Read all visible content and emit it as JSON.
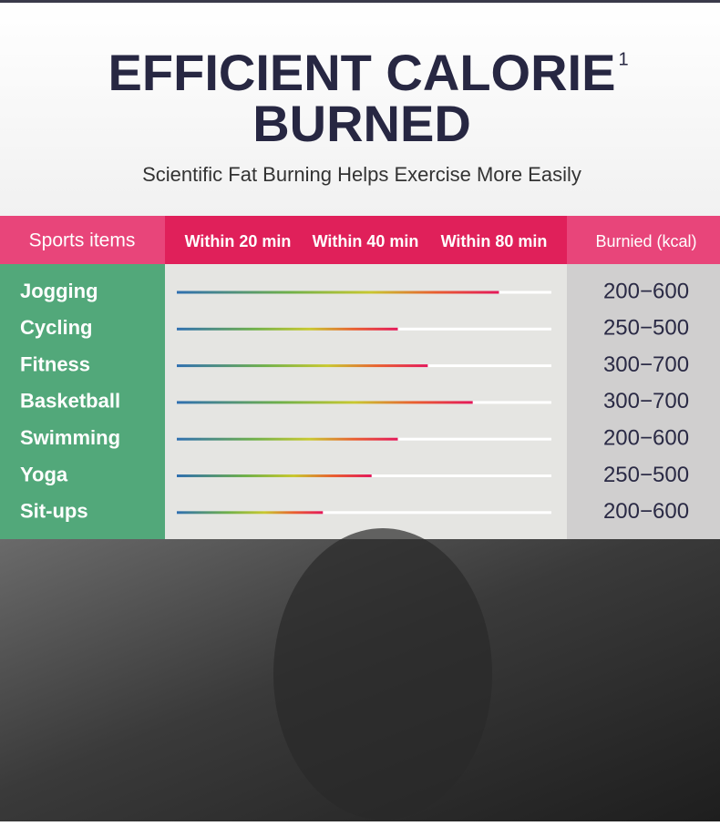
{
  "header": {
    "title_lines": [
      "EFFICIENT CALORIE",
      "BURNED"
    ],
    "title_superscript": "1",
    "subtitle": "Scientific Fat Burning Helps Exercise More Easily"
  },
  "table": {
    "columns": [
      "Sports items",
      "Within 20 min",
      "Within 40 min",
      "Within 80 min",
      "Burnied (kcal)"
    ],
    "rows": [
      {
        "sport": "Jogging",
        "progress": 86,
        "kcal": "200−600"
      },
      {
        "sport": "Cycling",
        "progress": 59,
        "kcal": "250−500"
      },
      {
        "sport": "Fitness",
        "progress": 67,
        "kcal": "300−700"
      },
      {
        "sport": "Basketball",
        "progress": 79,
        "kcal": "300−700"
      },
      {
        "sport": "Swimming",
        "progress": 59,
        "kcal": "200−600"
      },
      {
        "sport": "Yoga",
        "progress": 52,
        "kcal": "250−500"
      },
      {
        "sport": "Sit-ups",
        "progress": 39,
        "kcal": "200−600"
      }
    ]
  }
}
